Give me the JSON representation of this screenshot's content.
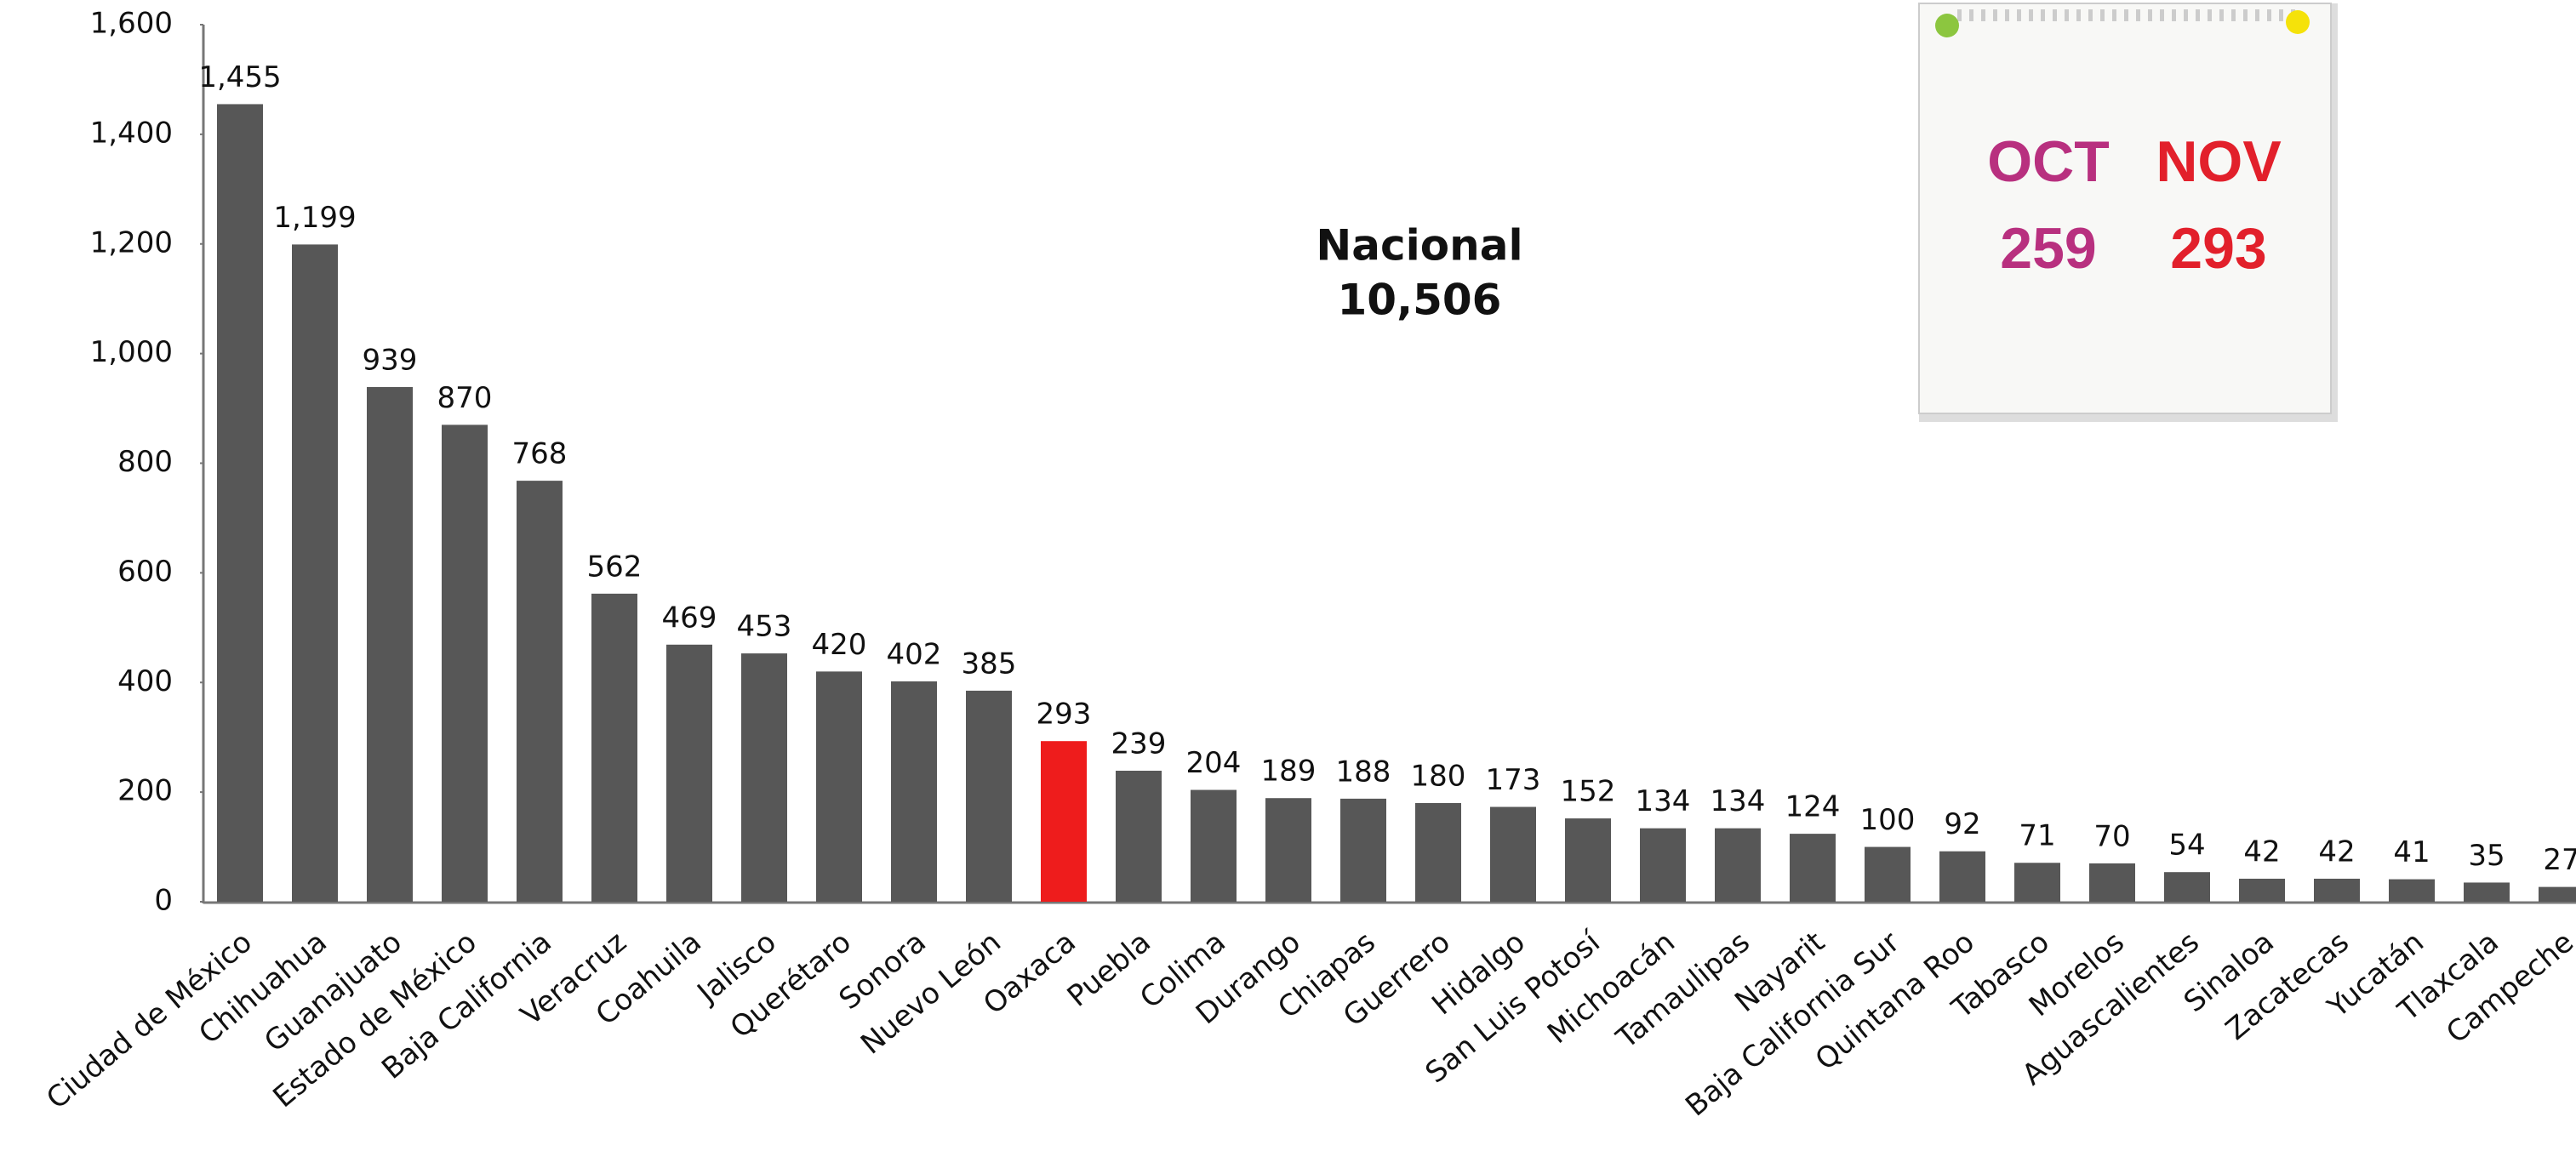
{
  "chart_data": {
    "type": "bar",
    "categories": [
      "Ciudad de México",
      "Chihuahua",
      "Guanajuato",
      "Estado de México",
      "Baja California",
      "Veracruz",
      "Coahuila",
      "Jalisco",
      "Querétaro",
      "Sonora",
      "Nuevo León",
      "Oaxaca",
      "Puebla",
      "Colima",
      "Durango",
      "Chiapas",
      "Guerrero",
      "Hidalgo",
      "San Luis Potosí",
      "Michoacán",
      "Tamaulipas",
      "Nayarit",
      "Baja California Sur",
      "Quintana Roo",
      "Tabasco",
      "Morelos",
      "Aguascalientes",
      "Sinaloa",
      "Zacatecas",
      "Yucatán",
      "Tlaxcala",
      "Campeche"
    ],
    "values": [
      1455,
      1199,
      939,
      870,
      768,
      562,
      469,
      453,
      420,
      402,
      385,
      293,
      239,
      204,
      189,
      188,
      180,
      173,
      152,
      134,
      134,
      124,
      100,
      92,
      71,
      70,
      54,
      42,
      42,
      41,
      35,
      27
    ],
    "value_labels": [
      "1,455",
      "1,199",
      "939",
      "870",
      "768",
      "562",
      "469",
      "453",
      "420",
      "402",
      "385",
      "293",
      "239",
      "204",
      "189",
      "188",
      "180",
      "173",
      "152",
      "134",
      "134",
      "124",
      "100",
      "92",
      "71",
      "70",
      "54",
      "42",
      "42",
      "41",
      "35",
      "27"
    ],
    "colors": [
      "#575757",
      "#575757",
      "#575757",
      "#575757",
      "#575757",
      "#575757",
      "#575757",
      "#575757",
      "#575757",
      "#575757",
      "#575757",
      "#ee1c1c",
      "#575757",
      "#575757",
      "#575757",
      "#575757",
      "#575757",
      "#575757",
      "#575757",
      "#575757",
      "#575757",
      "#575757",
      "#575757",
      "#575757",
      "#575757",
      "#575757",
      "#575757",
      "#575757",
      "#575757",
      "#575757",
      "#575757",
      "#575757"
    ],
    "ylim": [
      0,
      1600
    ],
    "yticks": [
      0,
      200,
      400,
      600,
      800,
      {
        "value": 1000,
        "label": "1,000"
      },
      {
        "value": 1200,
        "label": "1,200"
      },
      {
        "value": 1400,
        "label": "1,400"
      },
      {
        "value": 1600,
        "label": "1,600"
      }
    ],
    "grid": false,
    "annotation": [
      "Nacional",
      "10,506"
    ],
    "note": {
      "labels": [
        "OCT",
        "NOV"
      ],
      "values": [
        259,
        293
      ],
      "colors": [
        "#b8307f",
        "#e2202b"
      ]
    }
  }
}
